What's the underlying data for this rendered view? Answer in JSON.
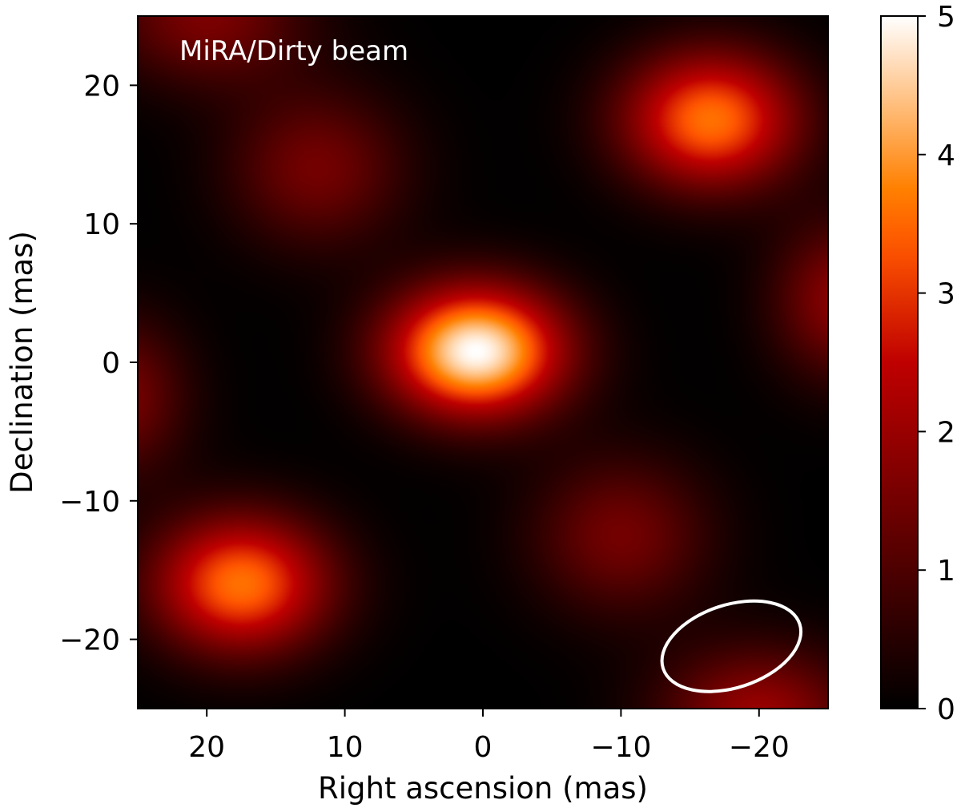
{
  "chart_data": {
    "type": "heatmap",
    "annotation": "MiRA/Dirty beam",
    "xlabel": "Right ascension (mas)",
    "ylabel": "Declination (mas)",
    "xlim": [
      25,
      -25
    ],
    "ylim": [
      -25,
      25
    ],
    "x_ticks": [
      20,
      10,
      0,
      -10,
      -20
    ],
    "x_tick_labels": [
      "20",
      "10",
      "0",
      "−10",
      "−20"
    ],
    "y_ticks": [
      20,
      10,
      0,
      -10,
      -20
    ],
    "y_tick_labels": [
      "20",
      "10",
      "0",
      "−10",
      "−20"
    ],
    "colorbar": {
      "range": [
        0,
        5
      ],
      "ticks": [
        0,
        1,
        2,
        3,
        4,
        5
      ],
      "tick_labels": [
        "0",
        "1",
        "2",
        "3",
        "4",
        "5"
      ],
      "colormap": "gist_heat"
    },
    "sources": [
      {
        "ra": 0.5,
        "dec": 0.8,
        "peak": 5.0,
        "sigma_ra": 4.5,
        "sigma_dec": 3.3
      },
      {
        "ra": -16.5,
        "dec": 17.5,
        "peak": 3.6,
        "sigma_ra": 4.5,
        "sigma_dec": 3.5
      },
      {
        "ra": 17.5,
        "dec": -16.0,
        "peak": 3.6,
        "sigma_ra": 4.5,
        "sigma_dec": 3.5
      },
      {
        "ra": 12.0,
        "dec": 14.0,
        "peak": 1.5,
        "sigma_ra": 4.5,
        "sigma_dec": 4.0
      },
      {
        "ra": -10.0,
        "dec": -12.5,
        "peak": 1.5,
        "sigma_ra": 4.5,
        "sigma_dec": 4.0
      },
      {
        "ra": 20.0,
        "dec": 25.0,
        "peak": 1.6,
        "sigma_ra": 5.0,
        "sigma_dec": 3.5
      },
      {
        "ra": -20.0,
        "dec": -25.5,
        "peak": 2.0,
        "sigma_ra": 5.0,
        "sigma_dec": 3.5
      },
      {
        "ra": 26.5,
        "dec": -2.5,
        "peak": 1.6,
        "sigma_ra": 3.5,
        "sigma_dec": 4.0
      },
      {
        "ra": -26.0,
        "dec": 4.5,
        "peak": 1.8,
        "sigma_ra": 3.5,
        "sigma_dec": 4.0
      }
    ],
    "beam_ellipse": {
      "ra": -18.0,
      "dec": -20.5,
      "major": 10.4,
      "minor": 6.0,
      "angle_deg": 18
    },
    "grid": false
  }
}
